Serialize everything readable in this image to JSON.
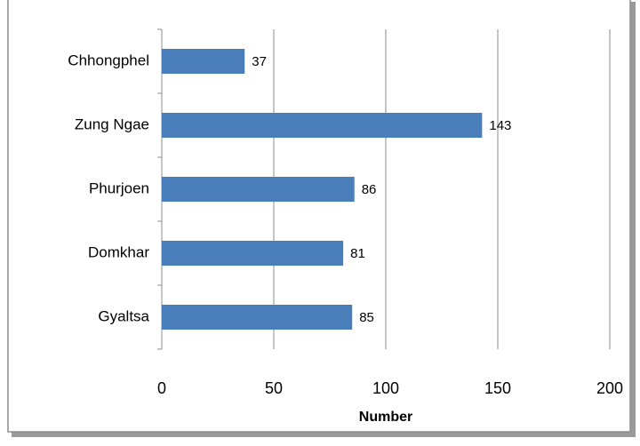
{
  "chart_data": {
    "type": "bar",
    "orientation": "horizontal",
    "categories": [
      "Chhongphel",
      "Zung Ngae",
      "Phurjoen",
      "Domkhar",
      "Gyaltsa"
    ],
    "values": [
      37,
      143,
      86,
      81,
      85
    ],
    "color": "#4a7ebb",
    "xlim": [
      0,
      200
    ],
    "xticks": [
      0,
      50,
      100,
      150,
      200
    ],
    "xlabel": "Number",
    "grid": true
  }
}
